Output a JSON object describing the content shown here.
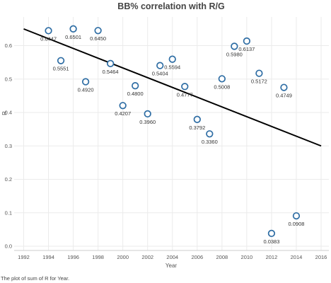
{
  "chart_data": {
    "type": "scatter",
    "title": "BB% correlation with R/G",
    "xlabel": "Year",
    "ylabel": "R",
    "xlim": [
      1992,
      2016
    ],
    "ylim": [
      0,
      0.65
    ],
    "x_ticks": [
      "1992",
      "1994",
      "1996",
      "1998",
      "2000",
      "2002",
      "2004",
      "2006",
      "2008",
      "2010",
      "2012",
      "2014",
      "2016"
    ],
    "y_ticks": [
      "0.0",
      "0.1",
      "0.2",
      "0.3",
      "0.4",
      "0.5",
      "0.6"
    ],
    "grid": true,
    "points": [
      {
        "x": 1994,
        "y": 0.6447,
        "label": "0.6447"
      },
      {
        "x": 1995,
        "y": 0.5551,
        "label": "0.5551"
      },
      {
        "x": 1996,
        "y": 0.6501,
        "label": "0.6501"
      },
      {
        "x": 1997,
        "y": 0.492,
        "label": "0.4920"
      },
      {
        "x": 1998,
        "y": 0.645,
        "label": "0.6450"
      },
      {
        "x": 1999,
        "y": 0.5464,
        "label": "0.5464"
      },
      {
        "x": 2000,
        "y": 0.4207,
        "label": "0.4207"
      },
      {
        "x": 2001,
        "y": 0.48,
        "label": "0.4800"
      },
      {
        "x": 2002,
        "y": 0.396,
        "label": "0.3960"
      },
      {
        "x": 2003,
        "y": 0.5404,
        "label": "0.5404"
      },
      {
        "x": 2004,
        "y": 0.5594,
        "label": "0.5594"
      },
      {
        "x": 2005,
        "y": 0.4777,
        "label": "0.4777"
      },
      {
        "x": 2006,
        "y": 0.3792,
        "label": "0.3792"
      },
      {
        "x": 2007,
        "y": 0.336,
        "label": "0.3360"
      },
      {
        "x": 2008,
        "y": 0.5008,
        "label": "0.5008"
      },
      {
        "x": 2009,
        "y": 0.598,
        "label": "0.5980"
      },
      {
        "x": 2010,
        "y": 0.6137,
        "label": "0.6137"
      },
      {
        "x": 2011,
        "y": 0.5172,
        "label": "0.5172"
      },
      {
        "x": 2012,
        "y": 0.0383,
        "label": "0.0383"
      },
      {
        "x": 2013,
        "y": 0.4749,
        "label": "0.4749"
      },
      {
        "x": 2014,
        "y": 0.0908,
        "label": "0.0908"
      }
    ],
    "trendline": {
      "x": [
        1992,
        2016
      ],
      "y": [
        0.65,
        0.3
      ]
    },
    "colors": {
      "marker": "#2e6da4",
      "trend": "#000000",
      "grid": "#ebebeb"
    }
  },
  "caption": "The plot of sum of R for Year."
}
